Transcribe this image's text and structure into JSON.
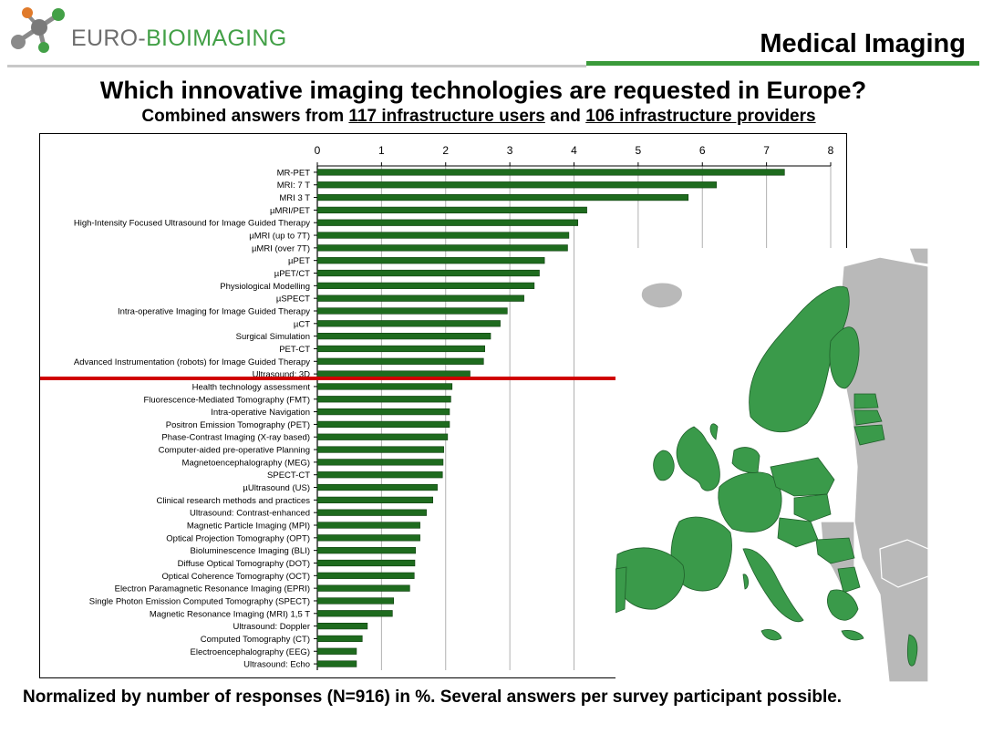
{
  "header": {
    "logo_text_left": "EURO-",
    "logo_text_right": "BIOIMAGING",
    "section_title": "Medical Imaging"
  },
  "headline": "Which innovative imaging technologies are requested in Europe?",
  "subline": {
    "part1": "Combined answers from ",
    "users": "117 infrastructure users",
    "part2": " and ",
    "providers": "106 infrastructure providers"
  },
  "footnote": "Normalized  by number of responses (N=916)  in %. Several answers per survey participant possible.",
  "colors": {
    "bar": "#1e6b1e",
    "country": "#3a9a4a",
    "cutoff_line": "#d00000",
    "logo_green": "#43a047"
  },
  "chart_data": {
    "type": "bar",
    "orientation": "horizontal",
    "xlim": [
      0,
      8
    ],
    "xticks": [
      "0",
      "1",
      "2",
      "3",
      "4",
      "5",
      "6",
      "7",
      "8"
    ],
    "grid": "vertical",
    "cutoff_after_category": "Ultrasound: 3D",
    "categories": [
      "MR-PET",
      "MRI: 7 T",
      "MRI 3 T",
      "µMRI/PET",
      "High-Intensity Focused Ultrasound for Image Guided Therapy",
      "µMRI (up to 7T)",
      "µMRI (over 7T)",
      "µPET",
      "µPET/CT",
      "Physiological Modelling",
      "µSPECT",
      "Intra-operative Imaging for Image Guided Therapy",
      "µCT",
      "Surgical Simulation",
      "PET-CT",
      "Advanced Instrumentation (robots) for Image Guided Therapy",
      "Ultrasound: 3D",
      "Health technology assessment",
      "Fluorescence-Mediated Tomography (FMT)",
      "Intra-operative Navigation",
      "Positron Emission Tomography (PET)",
      "Phase-Contrast Imaging (X-ray based)",
      "Computer-aided pre-operative Planning",
      "Magnetoencephalography (MEG)",
      "SPECT-CT",
      "µUltrasound (US)",
      "Clinical research methods and practices",
      "Ultrasound: Contrast-enhanced",
      "Magnetic Particle Imaging (MPI)",
      "Optical Projection Tomography (OPT)",
      "Bioluminescence Imaging (BLI)",
      "Diffuse Optical Tomography (DOT)",
      "Optical Coherence Tomography (OCT)",
      "Electron Paramagnetic Resonance Imaging (EPRI)",
      "Single Photon Emission Computed Tomography (SPECT)",
      "Magnetic Resonance Imaging (MRI) 1,5 T",
      "Ultrasound: Doppler",
      "Computed Tomography (CT)",
      "Electroencephalography (EEG)",
      "Ultrasound: Echo"
    ],
    "values": [
      7.28,
      6.22,
      5.78,
      4.2,
      4.06,
      3.92,
      3.9,
      3.54,
      3.46,
      3.38,
      3.22,
      2.96,
      2.85,
      2.7,
      2.61,
      2.59,
      2.38,
      2.1,
      2.08,
      2.06,
      2.06,
      2.03,
      1.97,
      1.96,
      1.95,
      1.87,
      1.8,
      1.7,
      1.6,
      1.6,
      1.53,
      1.52,
      1.51,
      1.44,
      1.19,
      1.17,
      0.78,
      0.7,
      0.61,
      0.61
    ]
  }
}
